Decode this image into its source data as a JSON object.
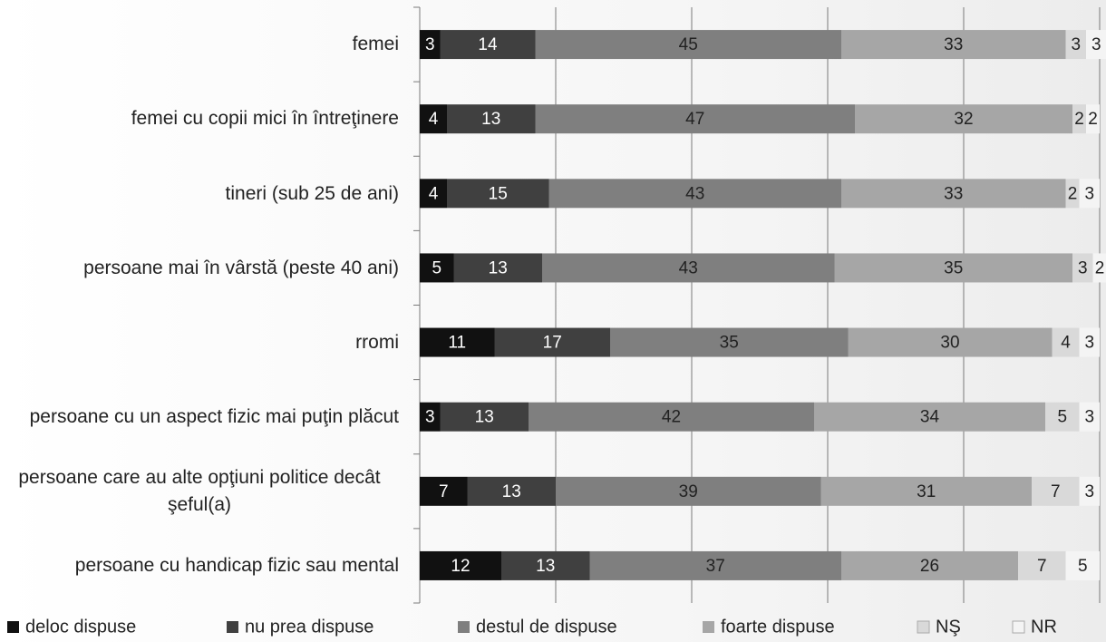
{
  "chart_data": {
    "type": "stacked-barh",
    "categories": [
      "femei",
      "femei cu copii mici în întreţinere",
      "tineri (sub 25 de ani)",
      "persoane mai în vârstă (peste 40 ani)",
      "rromi",
      "persoane cu un aspect fizic mai puţin plăcut",
      "persoane care au alte opţiuni politice decât şeful(a)",
      "persoane cu handicap fizic sau mental"
    ],
    "series": [
      {
        "name": "deloc dispuse",
        "color": "#111111",
        "values": [
          3,
          4,
          4,
          5,
          11,
          3,
          7,
          12
        ]
      },
      {
        "name": "nu prea dispuse",
        "color": "#404040",
        "values": [
          14,
          13,
          15,
          13,
          17,
          13,
          13,
          13
        ]
      },
      {
        "name": "destul de dispuse",
        "color": "#7f7f7f",
        "values": [
          45,
          47,
          43,
          43,
          35,
          42,
          39,
          37
        ]
      },
      {
        "name": "foarte dispuse",
        "color": "#a6a6a6",
        "values": [
          33,
          32,
          33,
          35,
          30,
          34,
          31,
          26
        ]
      },
      {
        "name": "NŞ",
        "color": "#d9d9d9",
        "values": [
          3,
          2,
          2,
          3,
          4,
          5,
          7,
          7
        ]
      },
      {
        "name": "NR",
        "color": "#f4f4f4",
        "values": [
          3,
          2,
          3,
          2,
          3,
          3,
          3,
          5
        ]
      }
    ],
    "xlim": [
      0,
      100
    ],
    "xticks": [
      0,
      20,
      40,
      60,
      80,
      100
    ],
    "grid": true,
    "legend": "bottom"
  }
}
